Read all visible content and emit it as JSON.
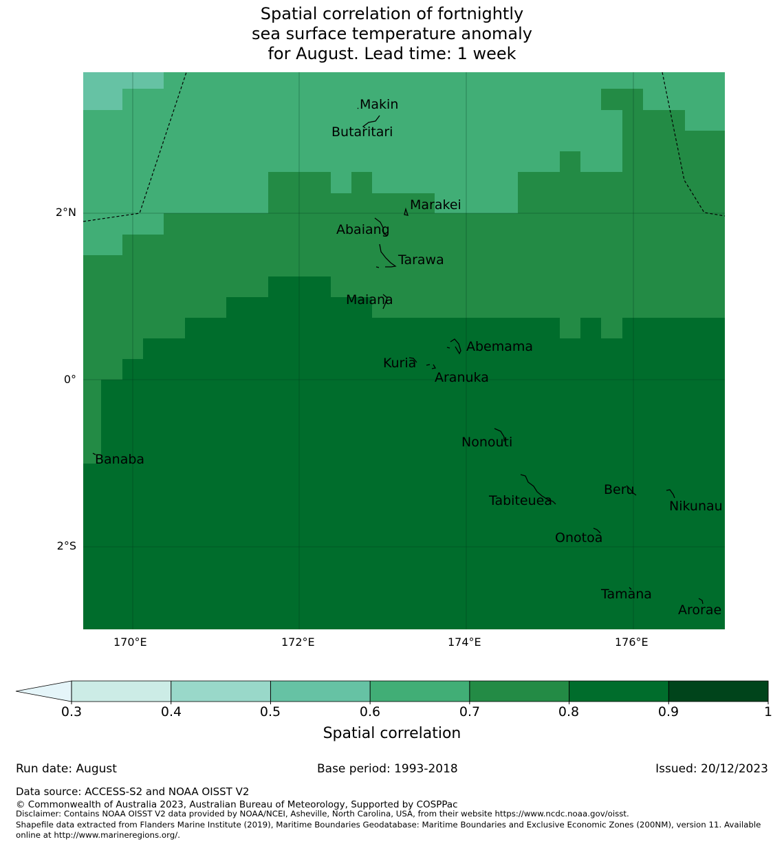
{
  "title": {
    "line1": "Spatial correlation of fortnightly",
    "line2": "sea surface temperature anomaly",
    "line3": " for August. Lead time: 1 week"
  },
  "map": {
    "lon_ticks": [
      "170°E",
      "172°E",
      "174°E",
      "176°E"
    ],
    "lat_ticks": [
      "2°N",
      "0°",
      "2°S"
    ],
    "places": [
      "Makin",
      "Butaritari",
      "Marakei",
      "Abaiang",
      "Tarawa",
      "Maiana",
      "Abemama",
      "Kuria",
      "Aranuka",
      "Nonouti",
      "Banaba",
      "Tabiteuea",
      "Beru",
      "Nikunau",
      "Onotoa",
      "Tamana",
      "Arorae"
    ]
  },
  "colorbar": {
    "ticks": [
      "0.3",
      "0.4",
      "0.5",
      "0.6",
      "0.7",
      "0.8",
      "0.9",
      "1"
    ],
    "colors": [
      "#e5f5f9",
      "#ccece6",
      "#99d8c9",
      "#66c2a4",
      "#41ae76",
      "#238b45",
      "#006d2c",
      "#00441b"
    ],
    "label": "Spatial correlation"
  },
  "footer": {
    "run_date": "Run date: August",
    "base_period": "Base period: 1993-2018",
    "issued": "Issued: 20/12/2023",
    "data_source": "Data source: ACCESS-S2 and NOAA OISST V2",
    "copyright": "© Commonwealth of Australia 2023, Australian Bureau of Meteorology, Supported by COSPPac",
    "disclaimer": "Disclaimer: Contains NOAA OISST V2 data provided by NOAA/NCEI, Asheville, North Carolina, USA, from their website https://www.ncdc.noaa.gov/oisst.",
    "shapefile_line1": "Shapefile data extracted from Flanders Marine Institute (2019), Maritime Boundaries Geodatabase: Maritime Boundaries and Exclusive Economic Zones (200NM), version 11. Available",
    "shapefile_line2": "online at http://www.marineregions.org/."
  }
}
